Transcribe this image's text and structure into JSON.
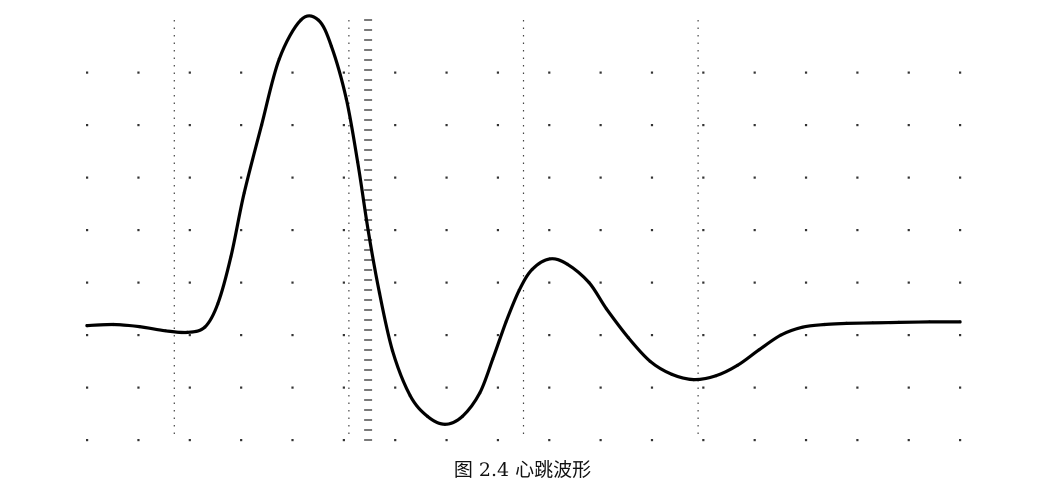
{
  "caption": "图 2.4  心跳波形",
  "chart_data": {
    "type": "line",
    "title": "",
    "xlabel": "",
    "ylabel": "",
    "grid": true,
    "grid_style": "dotted",
    "x_divisions": 10,
    "y_divisions": 8,
    "xlim": [
      0,
      10
    ],
    "ylim": [
      0,
      8
    ],
    "line_color": "#000000",
    "series": [
      {
        "x": [
          0.0,
          0.3,
          0.6,
          0.9,
          1.15,
          1.35,
          1.5,
          1.65,
          1.8,
          2.0,
          2.2,
          2.45,
          2.65,
          2.8,
          2.97,
          3.1,
          3.22,
          3.35,
          3.5,
          3.7,
          3.9,
          4.1,
          4.3,
          4.5,
          4.65,
          4.8,
          4.95,
          5.1,
          5.3,
          5.5,
          5.75,
          5.95,
          6.2,
          6.45,
          6.7,
          6.95,
          7.2,
          7.45,
          7.7,
          7.95,
          8.2,
          8.45,
          8.7,
          9.0,
          9.3,
          9.65,
          10.0
        ],
        "y": [
          2.18,
          2.2,
          2.16,
          2.08,
          2.05,
          2.15,
          2.6,
          3.5,
          4.7,
          6.0,
          7.25,
          8.0,
          8.0,
          7.5,
          6.5,
          5.3,
          4.0,
          2.8,
          1.7,
          0.85,
          0.45,
          0.3,
          0.45,
          0.9,
          1.55,
          2.25,
          2.85,
          3.25,
          3.45,
          3.35,
          3.0,
          2.5,
          1.95,
          1.5,
          1.25,
          1.15,
          1.22,
          1.42,
          1.72,
          2.0,
          2.15,
          2.2,
          2.22,
          2.23,
          2.24,
          2.25,
          2.25
        ]
      }
    ]
  }
}
